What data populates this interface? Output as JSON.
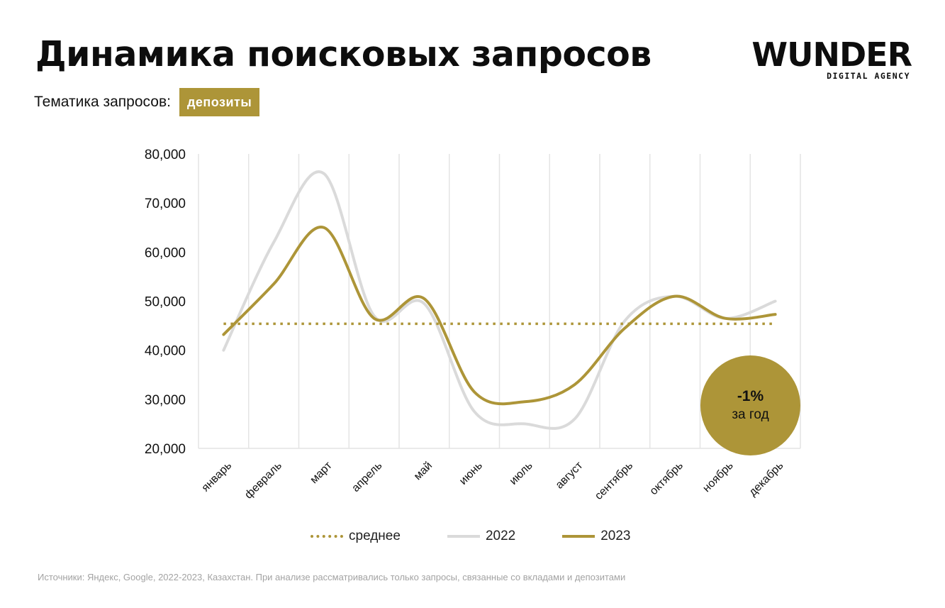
{
  "header": {
    "title": "Динамика поисковых запросов",
    "topic_label": "Тематика запросов:",
    "topic_value": "депозиты"
  },
  "logo": {
    "wordmark": "WUNDER",
    "tagline": "DIGITAL AGENCY"
  },
  "badge": {
    "value": "-1%",
    "label": "за год"
  },
  "legend": {
    "avg": "среднее",
    "s2022": "2022",
    "s2023": "2023"
  },
  "source": "Источники: Яндекс, Google, 2022-2023, Казахстан. При анализе рассматривались только запросы, связанные со вкладами и депозитами",
  "colors": {
    "gold": "#ad9538",
    "gray": "#dadada",
    "grid": "#e4e4e4",
    "text": "#111111"
  },
  "chart_data": {
    "type": "line",
    "categories": [
      "январь",
      "февраль",
      "март",
      "апрель",
      "май",
      "июнь",
      "июль",
      "август",
      "сентябрь",
      "октябрь",
      "ноябрь",
      "декабрь"
    ],
    "ylim": [
      20000,
      80000
    ],
    "yticks": [
      20000,
      30000,
      40000,
      50000,
      60000,
      70000,
      80000
    ],
    "ytick_labels": [
      "20,000",
      "30,000",
      "40,000",
      "50,000",
      "60,000",
      "70,000",
      "80,000"
    ],
    "series": [
      {
        "name": "2022",
        "color": "#dadada",
        "style": "solid",
        "values": [
          40000,
          62000,
          76000,
          47000,
          49500,
          27500,
          25000,
          26000,
          46000,
          51000,
          46500,
          50000
        ]
      },
      {
        "name": "2023",
        "color": "#ad9538",
        "style": "solid",
        "values": [
          43200,
          53500,
          65000,
          46500,
          50500,
          31500,
          29500,
          33000,
          44500,
          51000,
          46500,
          47300
        ]
      },
      {
        "name": "среднее",
        "color": "#ad9538",
        "style": "dotted",
        "values": [
          45400,
          45400,
          45400,
          45400,
          45400,
          45400,
          45400,
          45400,
          45400,
          45400,
          45400,
          45400
        ]
      }
    ],
    "grid": "vertical",
    "legend_position": "bottom"
  }
}
